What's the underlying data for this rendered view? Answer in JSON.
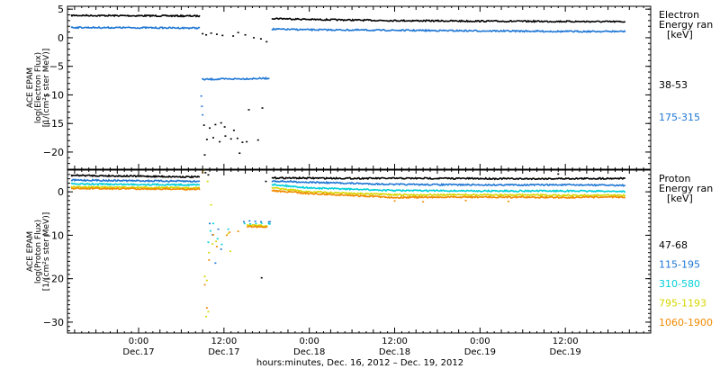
{
  "chart_data": [
    {
      "type": "scatter",
      "panel": "top",
      "ylabel_lines": [
        "ACE EPAM",
        "log(Electron Flux)",
        "[1/(cm²s ster MeV)]"
      ],
      "legend_title": [
        "Electron",
        "Energy ran",
        "[keV]"
      ],
      "legend_placement": "right",
      "ylim": [
        -23,
        5.5
      ],
      "yticks": [
        5,
        0,
        -5,
        -10,
        -15,
        -20
      ],
      "ytick_labels": [
        "5",
        "0",
        "−5",
        "−10",
        "−15",
        "−20"
      ],
      "series": [
        {
          "name": "38-53",
          "color": "#000000",
          "segments": [
            {
              "x": [
                -9.5,
                8.6
              ],
              "y": [
                3.9,
                3.8
              ]
            },
            {
              "x": [
                18.7,
                24,
                36,
                48,
                60,
                68.5
              ],
              "y": [
                3.4,
                3.2,
                3.0,
                2.9,
                2.85,
                2.8
              ]
            }
          ],
          "gap_points": [
            [
              9.0,
              0.7
            ],
            [
              9.5,
              0.5
            ],
            [
              10.2,
              0.8
            ],
            [
              11.0,
              0.6
            ],
            [
              11.8,
              0.4
            ],
            [
              13.3,
              0.3
            ],
            [
              14.0,
              0.9
            ],
            [
              15.0,
              0.5
            ],
            [
              16.2,
              0.0
            ],
            [
              17.2,
              -0.2
            ],
            [
              18.0,
              -0.7
            ],
            [
              9.2,
              -15.3
            ],
            [
              10.0,
              -15.8
            ],
            [
              10.8,
              -15.2
            ],
            [
              11.6,
              -14.9
            ],
            [
              12.1,
              -15.6
            ],
            [
              9.6,
              -17.8
            ],
            [
              10.5,
              -17.5
            ],
            [
              11.4,
              -18.2
            ],
            [
              12.2,
              -17.2
            ],
            [
              13.0,
              -17.7
            ],
            [
              13.9,
              -17.6
            ],
            [
              14.6,
              -18.3
            ],
            [
              15.2,
              -18.2
            ],
            [
              13.4,
              -16.2
            ],
            [
              15.5,
              -12.6
            ],
            [
              17.4,
              -12.3
            ],
            [
              16.8,
              -17.9
            ],
            [
              9.3,
              -20.5
            ],
            [
              14.2,
              -20.2
            ]
          ]
        },
        {
          "name": "175-315",
          "color": "#1f77d4",
          "segments": [
            {
              "x": [
                -9.5,
                8.6
              ],
              "y": [
                1.8,
                1.7
              ]
            },
            {
              "x": [
                8.9,
                18.4
              ],
              "y": [
                -7.3,
                -7.1
              ]
            },
            {
              "x": [
                18.7,
                24,
                36,
                48,
                60,
                68.5
              ],
              "y": [
                1.5,
                1.4,
                1.3,
                1.2,
                1.1,
                1.1
              ]
            }
          ],
          "gap_points": [
            [
              8.8,
              -10.2
            ],
            [
              9.0,
              -13.5
            ],
            [
              8.9,
              -12.0
            ]
          ]
        }
      ]
    },
    {
      "type": "scatter",
      "panel": "bottom",
      "ylabel_lines": [
        "ACE EPAM",
        "log(Proton Flux)",
        "[1/(cm²s ster MeV)]"
      ],
      "legend_title": [
        "Proton",
        "Energy ran",
        "[keV]"
      ],
      "legend_placement": "right",
      "ylim": [
        -32.5,
        5
      ],
      "yticks": [
        0,
        -10,
        -20,
        -30
      ],
      "ytick_labels": [
        "0",
        "−10",
        "−20",
        "−30"
      ],
      "xlim": [
        -10,
        72
      ],
      "xticks": [
        0,
        12,
        24,
        36,
        48,
        60
      ],
      "xtick_labels": [
        "0:00",
        "12:00",
        "0:00",
        "12:00",
        "0:00",
        "12:00"
      ],
      "xtick_sublabels": [
        "Dec.17",
        "Dec.17",
        "Dec.18",
        "Dec.18",
        "Dec.19",
        "Dec.19"
      ],
      "xlabel": "hours:minutes, Dec. 16, 2012 – Dec. 19, 2012",
      "series": [
        {
          "name": "47-68",
          "color": "#000000",
          "segments": [
            {
              "x": [
                -9.5,
                8.6
              ],
              "y": [
                3.8,
                3.4
              ]
            },
            {
              "x": [
                18.7,
                30,
                42,
                54,
                68.5
              ],
              "y": [
                3.2,
                3.1,
                3.1,
                3.0,
                3.1
              ]
            }
          ],
          "gap_points": [
            [
              9.4,
              4.4
            ],
            [
              9.8,
              3.9
            ],
            [
              17.9,
              2.4
            ],
            [
              59.0,
              4.1
            ],
            [
              17.3,
              -19.8
            ]
          ]
        },
        {
          "name": "115-195",
          "color": "#1f77d4",
          "segments": [
            {
              "x": [
                -9.5,
                8.6
              ],
              "y": [
                2.7,
                2.4
              ]
            },
            {
              "x": [
                18.2,
                18.7
              ],
              "y": [
                -6.9,
                -6.9
              ]
            },
            {
              "x": [
                18.7,
                24,
                36,
                48,
                60,
                68.5
              ],
              "y": [
                2.5,
                2.2,
                1.7,
                1.6,
                1.6,
                1.5
              ]
            }
          ],
          "gap_points": [
            [
              10.0,
              -7.3
            ],
            [
              10.4,
              -9.9
            ],
            [
              11.2,
              -8.6
            ],
            [
              10.8,
              -16.4
            ],
            [
              11.6,
              -13.2
            ],
            [
              14.8,
              -6.9
            ],
            [
              15.6,
              -6.7
            ],
            [
              16.4,
              -6.8
            ],
            [
              17.2,
              -6.9
            ]
          ]
        },
        {
          "name": "310-580",
          "color": "#00cfd8",
          "segments": [
            {
              "x": [
                -9.5,
                8.6
              ],
              "y": [
                1.8,
                1.6
              ]
            },
            {
              "x": [
                18.2,
                18.7
              ],
              "y": [
                -7.3,
                -7.3
              ]
            },
            {
              "x": [
                18.7,
                24,
                36,
                48,
                60,
                68.5
              ],
              "y": [
                1.7,
                0.9,
                0.3,
                0.2,
                0.2,
                0.1
              ]
            }
          ],
          "gap_points": [
            [
              10.1,
              -9.0
            ],
            [
              10.5,
              -7.3
            ],
            [
              11.1,
              -10.8
            ],
            [
              11.7,
              -12.1
            ],
            [
              9.8,
              -11.6
            ],
            [
              14.9,
              -7.3
            ],
            [
              15.7,
              -7.4
            ],
            [
              16.5,
              -7.3
            ],
            [
              17.3,
              -7.2
            ],
            [
              12.6,
              -8.6
            ]
          ]
        },
        {
          "name": "795-1193",
          "color": "#d6d600",
          "segments": [
            {
              "x": [
                -9.5,
                8.6
              ],
              "y": [
                1.1,
                0.9
              ]
            },
            {
              "x": [
                15.2,
                18.2
              ],
              "y": [
                -7.7,
                -7.8
              ]
            },
            {
              "x": [
                18.7,
                24,
                36,
                48,
                60,
                68.5
              ],
              "y": [
                0.9,
                0.0,
                -0.7,
                -0.7,
                -0.8,
                -0.8
              ]
            }
          ],
          "gap_points": [
            [
              9.2,
              5.0
            ],
            [
              9.7,
              2.4
            ],
            [
              10.2,
              -3.0
            ],
            [
              9.9,
              -14.0
            ],
            [
              10.4,
              -12.0
            ],
            [
              9.6,
              -20.4
            ],
            [
              10.9,
              -11.4
            ],
            [
              9.3,
              -19.5
            ],
            [
              12.6,
              -9.6
            ],
            [
              12.9,
              -13.7
            ],
            [
              9.8,
              -27.6
            ],
            [
              9.5,
              -28.7
            ]
          ]
        },
        {
          "name": "1060-1900",
          "color": "#f08a00",
          "segments": [
            {
              "x": [
                -9.5,
                8.6
              ],
              "y": [
                0.8,
                0.6
              ]
            },
            {
              "x": [
                15.2,
                18.2
              ],
              "y": [
                -8.0,
                -8.1
              ]
            },
            {
              "x": [
                18.7,
                24,
                36,
                48,
                60,
                68.5
              ],
              "y": [
                0.3,
                -0.4,
                -1.3,
                -1.2,
                -1.3,
                -1.2
              ]
            }
          ],
          "gap_points": [
            [
              9.0,
              4.5
            ],
            [
              9.3,
              -21.4
            ],
            [
              9.9,
              -15.7
            ],
            [
              10.5,
              -9.9
            ],
            [
              11.0,
              -12.6
            ],
            [
              12.4,
              -10.0
            ],
            [
              14.0,
              -9.1
            ],
            [
              12.8,
              -9.3
            ],
            [
              9.6,
              -26.7
            ],
            [
              36.0,
              -2.1
            ],
            [
              40.0,
              -2.3
            ],
            [
              46.0,
              -2.0
            ],
            [
              52.0,
              -2.2
            ]
          ]
        }
      ]
    }
  ]
}
